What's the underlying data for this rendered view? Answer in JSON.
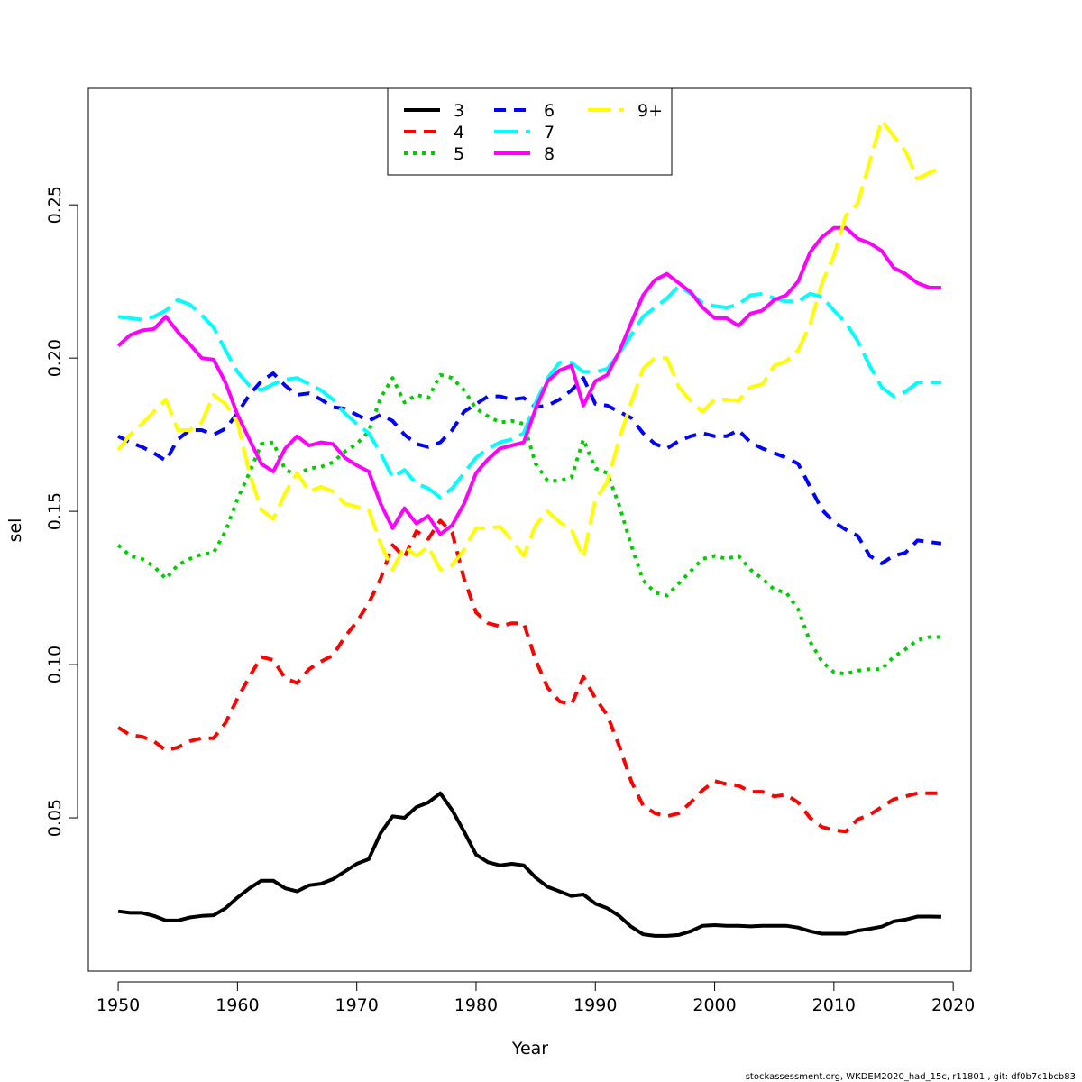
{
  "chart_data": {
    "type": "line",
    "title": "",
    "xlabel": "Year",
    "ylabel": "sel",
    "xlim": [
      1947.5,
      2021.5
    ],
    "ylim": [
      0.0,
      0.288
    ],
    "x_ticks": [
      1950,
      1960,
      1970,
      1980,
      1990,
      2000,
      2010,
      2020
    ],
    "y_ticks": [
      0.05,
      0.1,
      0.15,
      0.2,
      0.25
    ],
    "y_tick_labels": [
      "0.05",
      "0.10",
      "0.15",
      "0.20",
      "0.25"
    ],
    "grid": false,
    "legend_position": "top-center",
    "footer": "stockassessment.org, WKDEM2020_had_15c, r11801 , git: df0b7c1bcb83",
    "x": [
      1950,
      1951,
      1952,
      1953,
      1954,
      1955,
      1956,
      1957,
      1958,
      1959,
      1960,
      1961,
      1962,
      1963,
      1964,
      1965,
      1966,
      1967,
      1968,
      1969,
      1970,
      1971,
      1972,
      1973,
      1974,
      1975,
      1976,
      1977,
      1978,
      1979,
      1980,
      1981,
      1982,
      1983,
      1984,
      1985,
      1986,
      1987,
      1988,
      1989,
      1990,
      1991,
      1992,
      1993,
      1994,
      1995,
      1996,
      1997,
      1998,
      1999,
      2000,
      2001,
      2002,
      2003,
      2004,
      2005,
      2006,
      2007,
      2008,
      2009,
      2010,
      2011,
      2012,
      2013,
      2014,
      2015,
      2016,
      2017,
      2018,
      2019
    ],
    "series": [
      {
        "name": "3",
        "color": "#000000",
        "dash": "solid",
        "values": [
          0.0195,
          0.019,
          0.019,
          0.018,
          0.0165,
          0.0165,
          0.0175,
          0.018,
          0.0182,
          0.0205,
          0.024,
          0.027,
          0.0295,
          0.0295,
          0.027,
          0.026,
          0.028,
          0.0285,
          0.03,
          0.0325,
          0.035,
          0.0365,
          0.045,
          0.0505,
          0.05,
          0.0535,
          0.055,
          0.058,
          0.0525,
          0.0455,
          0.038,
          0.0355,
          0.0345,
          0.035,
          0.0345,
          0.0305,
          0.0275,
          0.026,
          0.0245,
          0.025,
          0.022,
          0.0205,
          0.018,
          0.0145,
          0.012,
          0.0115,
          0.0115,
          0.0118,
          0.013,
          0.0148,
          0.015,
          0.0148,
          0.0148,
          0.0146,
          0.0148,
          0.0148,
          0.0148,
          0.0142,
          0.013,
          0.0122,
          0.0122,
          0.0122,
          0.0132,
          0.0138,
          0.0145,
          0.0162,
          0.0168,
          0.0178,
          0.0178,
          0.0177
        ]
      },
      {
        "name": "4",
        "color": "#ff0000",
        "dash": "dashed",
        "values": [
          0.0795,
          0.077,
          0.0765,
          0.075,
          0.072,
          0.073,
          0.075,
          0.076,
          0.076,
          0.081,
          0.089,
          0.096,
          0.1025,
          0.1015,
          0.0955,
          0.094,
          0.0985,
          0.101,
          0.103,
          0.109,
          0.114,
          0.12,
          0.128,
          0.139,
          0.135,
          0.1435,
          0.141,
          0.147,
          0.143,
          0.128,
          0.117,
          0.1135,
          0.1125,
          0.1135,
          0.1135,
          0.1015,
          0.0925,
          0.088,
          0.087,
          0.096,
          0.089,
          0.0835,
          0.0735,
          0.062,
          0.054,
          0.0515,
          0.0505,
          0.0515,
          0.055,
          0.059,
          0.062,
          0.061,
          0.0605,
          0.0585,
          0.0585,
          0.057,
          0.0575,
          0.055,
          0.05,
          0.047,
          0.046,
          0.0455,
          0.0495,
          0.051,
          0.0535,
          0.056,
          0.057,
          0.058,
          0.058,
          0.058
        ]
      },
      {
        "name": "5",
        "color": "#00cd00",
        "dash": "dotted",
        "values": [
          0.139,
          0.1355,
          0.1345,
          0.132,
          0.128,
          0.1325,
          0.1345,
          0.136,
          0.1365,
          0.1435,
          0.154,
          0.1625,
          0.172,
          0.1725,
          0.1635,
          0.162,
          0.164,
          0.1645,
          0.166,
          0.1695,
          0.172,
          0.176,
          0.187,
          0.1935,
          0.1855,
          0.188,
          0.187,
          0.1945,
          0.1935,
          0.1895,
          0.1835,
          0.181,
          0.179,
          0.1795,
          0.1785,
          0.1655,
          0.16,
          0.16,
          0.161,
          0.1735,
          0.164,
          0.1625,
          0.152,
          0.139,
          0.1275,
          0.1235,
          0.1225,
          0.1265,
          0.1305,
          0.1345,
          0.1355,
          0.1345,
          0.1355,
          0.131,
          0.128,
          0.1245,
          0.1235,
          0.118,
          0.1075,
          0.101,
          0.0975,
          0.097,
          0.098,
          0.0985,
          0.0985,
          0.1025,
          0.105,
          0.108,
          0.109,
          0.109
        ]
      },
      {
        "name": "6",
        "color": "#0000ff",
        "dash": "dashed",
        "values": [
          0.1745,
          0.1725,
          0.171,
          0.169,
          0.1665,
          0.1735,
          0.1765,
          0.1765,
          0.175,
          0.177,
          0.182,
          0.188,
          0.1925,
          0.195,
          0.191,
          0.188,
          0.1885,
          0.1865,
          0.184,
          0.1835,
          0.1815,
          0.1795,
          0.1815,
          0.1795,
          0.175,
          0.172,
          0.171,
          0.1725,
          0.1765,
          0.1825,
          0.185,
          0.1875,
          0.1875,
          0.1865,
          0.187,
          0.184,
          0.1845,
          0.1865,
          0.1895,
          0.1935,
          0.185,
          0.1845,
          0.1825,
          0.1805,
          0.1755,
          0.172,
          0.1705,
          0.173,
          0.1745,
          0.1755,
          0.1745,
          0.1745,
          0.1765,
          0.1725,
          0.1705,
          0.169,
          0.1675,
          0.1655,
          0.158,
          0.1505,
          0.1465,
          0.144,
          0.142,
          0.1355,
          0.133,
          0.1355,
          0.1365,
          0.1405,
          0.14,
          0.1395
        ]
      },
      {
        "name": "7",
        "color": "#00ffff",
        "dash": "longdash",
        "values": [
          0.2135,
          0.213,
          0.2125,
          0.2135,
          0.2155,
          0.219,
          0.2175,
          0.214,
          0.21,
          0.2025,
          0.1955,
          0.191,
          0.1895,
          0.1915,
          0.193,
          0.1935,
          0.1915,
          0.1895,
          0.1865,
          0.182,
          0.1785,
          0.1755,
          0.169,
          0.161,
          0.1635,
          0.159,
          0.1575,
          0.1545,
          0.1575,
          0.1625,
          0.1675,
          0.1705,
          0.1725,
          0.1735,
          0.1755,
          0.1855,
          0.1935,
          0.1985,
          0.1985,
          0.1955,
          0.1955,
          0.1965,
          0.2015,
          0.2075,
          0.2135,
          0.2165,
          0.2195,
          0.2235,
          0.221,
          0.218,
          0.217,
          0.2165,
          0.2175,
          0.2205,
          0.221,
          0.2195,
          0.2185,
          0.2185,
          0.221,
          0.22,
          0.2155,
          0.2115,
          0.2055,
          0.1975,
          0.1905,
          0.1875,
          0.189,
          0.192,
          0.192,
          0.192
        ]
      },
      {
        "name": "8",
        "color": "#ff00ff",
        "dash": "solid",
        "values": [
          0.204,
          0.2075,
          0.209,
          0.2095,
          0.2135,
          0.2085,
          0.2045,
          0.2,
          0.1995,
          0.192,
          0.1815,
          0.1735,
          0.1655,
          0.163,
          0.1705,
          0.1745,
          0.1715,
          0.1725,
          0.172,
          0.1675,
          0.165,
          0.163,
          0.1525,
          0.1445,
          0.151,
          0.146,
          0.1485,
          0.1425,
          0.1455,
          0.1525,
          0.1625,
          0.167,
          0.1705,
          0.1715,
          0.1725,
          0.1835,
          0.1925,
          0.196,
          0.1975,
          0.1845,
          0.1925,
          0.1945,
          0.202,
          0.2115,
          0.2205,
          0.2255,
          0.2275,
          0.2245,
          0.2215,
          0.2165,
          0.213,
          0.213,
          0.2105,
          0.2145,
          0.2155,
          0.219,
          0.2205,
          0.225,
          0.2345,
          0.2395,
          0.2425,
          0.2425,
          0.239,
          0.2375,
          0.235,
          0.2295,
          0.2275,
          0.2245,
          0.223,
          0.223
        ]
      },
      {
        "name": "9+",
        "color": "#ffff00",
        "dash": "longdash",
        "values": [
          0.17,
          0.175,
          0.1785,
          0.1825,
          0.1865,
          0.1765,
          0.1765,
          0.179,
          0.188,
          0.185,
          0.179,
          0.1625,
          0.1505,
          0.1475,
          0.156,
          0.1625,
          0.1565,
          0.158,
          0.1565,
          0.1525,
          0.1515,
          0.1505,
          0.1395,
          0.131,
          0.1385,
          0.1355,
          0.1385,
          0.131,
          0.1325,
          0.1375,
          0.1445,
          0.1445,
          0.145,
          0.1405,
          0.1355,
          0.1455,
          0.15,
          0.1465,
          0.144,
          0.135,
          0.154,
          0.1595,
          0.1735,
          0.1855,
          0.1965,
          0.2,
          0.2,
          0.1905,
          0.186,
          0.1825,
          0.1865,
          0.1865,
          0.186,
          0.1905,
          0.1915,
          0.1975,
          0.199,
          0.2025,
          0.211,
          0.2245,
          0.2335,
          0.2465,
          0.2505,
          0.264,
          0.2775,
          0.2725,
          0.2675,
          0.2585,
          0.2605,
          0.262
        ]
      }
    ]
  }
}
